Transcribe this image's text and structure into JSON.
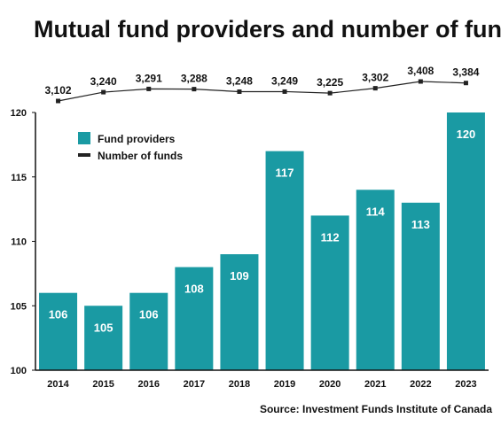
{
  "chart_data": {
    "type": "bar",
    "title": "Mutual fund providers and number of funds",
    "source": "Source: Investment Funds Institute of Canada",
    "categories": [
      "2014",
      "2015",
      "2016",
      "2017",
      "2018",
      "2019",
      "2020",
      "2021",
      "2022",
      "2023"
    ],
    "series": [
      {
        "name": "Fund providers",
        "type": "bar",
        "values": [
          106,
          105,
          106,
          108,
          109,
          117,
          112,
          114,
          113,
          120
        ],
        "data_labels": [
          "106",
          "105",
          "106",
          "108",
          "109",
          "117",
          "112",
          "114",
          "113",
          "120"
        ]
      },
      {
        "name": "Number of funds",
        "type": "line",
        "values": [
          3102,
          3240,
          3291,
          3288,
          3248,
          3249,
          3225,
          3302,
          3408,
          3384
        ],
        "data_labels": [
          "3,102",
          "3,240",
          "3,291",
          "3,288",
          "3,248",
          "3,249",
          "3,225",
          "3,302",
          "3,408",
          "3,384"
        ]
      }
    ],
    "ylim": [
      100,
      120
    ],
    "yticks": [
      "100",
      "105",
      "110",
      "115",
      "120"
    ],
    "legend_position": "top-left",
    "grid": false,
    "colors": {
      "bar": "#1a9aa3",
      "line": "#222222"
    }
  }
}
